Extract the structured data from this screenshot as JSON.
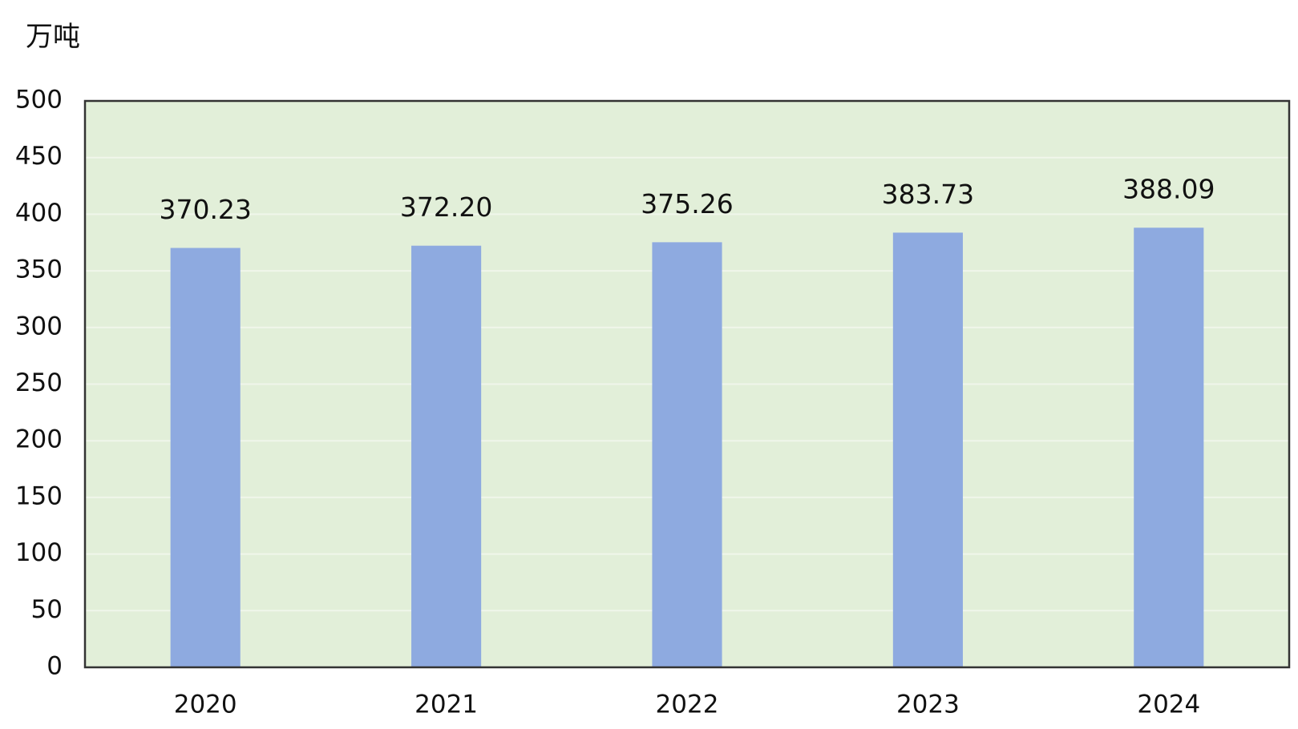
{
  "chart_data": {
    "type": "bar",
    "y_label": "万吨",
    "categories": [
      "2020",
      "2021",
      "2022",
      "2023",
      "2024"
    ],
    "values": [
      370.23,
      372.2,
      375.26,
      383.73,
      388.09
    ],
    "value_labels": [
      "370.23",
      "372.20",
      "375.26",
      "383.73",
      "388.09"
    ],
    "color": "#8eaae0",
    "ylim": [
      0,
      500
    ],
    "yticks": [
      0,
      50,
      100,
      150,
      200,
      250,
      300,
      350,
      400,
      450,
      500
    ],
    "grid": true
  }
}
